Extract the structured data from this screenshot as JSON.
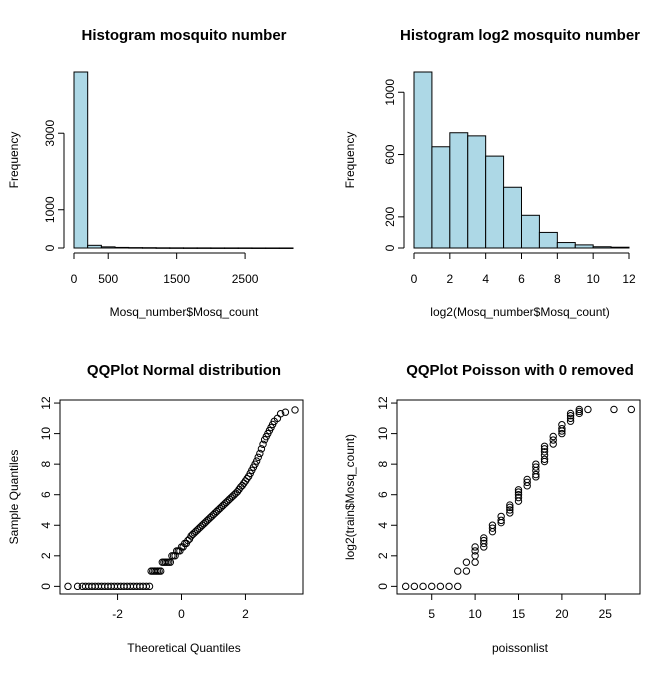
{
  "chart_data": [
    {
      "type": "bar",
      "title": "Histogram mosquito number",
      "xlabel": "Mosq_number$Mosq_count",
      "ylabel": "Frequency",
      "bin_edges": [
        0,
        200,
        400,
        600,
        800,
        1000,
        1200,
        1400,
        1600,
        1800,
        2000,
        2200,
        2400,
        2600,
        2800,
        3000,
        3200
      ],
      "values": [
        4600,
        70,
        30,
        15,
        10,
        8,
        5,
        4,
        3,
        3,
        2,
        2,
        2,
        1,
        1,
        1
      ],
      "xticks": [
        0,
        500,
        1500,
        2500
      ],
      "yticks": [
        0,
        1000,
        3000
      ],
      "xlim": [
        0,
        3200
      ],
      "ylim": [
        0,
        4600
      ],
      "bar_color": "#add8e6"
    },
    {
      "type": "bar",
      "title": "Histogram log2 mosquito number",
      "xlabel": "log2(Mosq_number$Mosq_count)",
      "ylabel": "Frequency",
      "bin_edges": [
        0,
        1,
        2,
        3,
        4,
        5,
        6,
        7,
        8,
        9,
        10,
        11,
        12
      ],
      "values": [
        1130,
        650,
        740,
        720,
        590,
        390,
        210,
        100,
        35,
        20,
        8,
        5
      ],
      "xticks": [
        0,
        2,
        4,
        6,
        8,
        10,
        12
      ],
      "yticks": [
        0,
        200,
        600,
        1000
      ],
      "xlim": [
        0,
        12
      ],
      "ylim": [
        0,
        1130
      ],
      "bar_color": "#add8e6"
    },
    {
      "type": "scatter",
      "title": "QQPlot Normal distribution",
      "xlabel": "Theoretical Quantiles",
      "ylabel": "Sample Quantiles",
      "xticks": [
        -2,
        0,
        2
      ],
      "yticks": [
        0,
        2,
        4,
        6,
        8,
        10,
        12
      ],
      "xlim": [
        -3.8,
        3.8
      ],
      "ylim": [
        -0.5,
        12.2
      ],
      "points": [
        [
          -3.55,
          0
        ],
        [
          -3.25,
          0
        ],
        [
          -3.1,
          0
        ],
        [
          -3.0,
          0
        ],
        [
          -2.9,
          0
        ],
        [
          -2.8,
          0
        ],
        [
          -2.7,
          0
        ],
        [
          -2.6,
          0
        ],
        [
          -2.5,
          0
        ],
        [
          -2.4,
          0
        ],
        [
          -2.3,
          0
        ],
        [
          -2.2,
          0
        ],
        [
          -2.1,
          0
        ],
        [
          -2.0,
          0
        ],
        [
          -1.9,
          0
        ],
        [
          -1.8,
          0
        ],
        [
          -1.7,
          0
        ],
        [
          -1.6,
          0
        ],
        [
          -1.5,
          0
        ],
        [
          -1.4,
          0
        ],
        [
          -1.3,
          0
        ],
        [
          -1.2,
          0
        ],
        [
          -1.1,
          0
        ],
        [
          -1.0,
          0
        ],
        [
          -0.95,
          1
        ],
        [
          -0.9,
          1
        ],
        [
          -0.85,
          1
        ],
        [
          -0.8,
          1
        ],
        [
          -0.75,
          1
        ],
        [
          -0.7,
          1
        ],
        [
          -0.65,
          1
        ],
        [
          -0.6,
          1.58
        ],
        [
          -0.55,
          1.58
        ],
        [
          -0.5,
          1.58
        ],
        [
          -0.45,
          1.58
        ],
        [
          -0.4,
          1.58
        ],
        [
          -0.35,
          1.58
        ],
        [
          -0.3,
          2
        ],
        [
          -0.25,
          2
        ],
        [
          -0.2,
          2
        ],
        [
          -0.15,
          2.32
        ],
        [
          -0.1,
          2.32
        ],
        [
          -0.05,
          2.32
        ],
        [
          0,
          2.58
        ],
        [
          0.05,
          2.58
        ],
        [
          0.1,
          2.81
        ],
        [
          0.15,
          2.81
        ],
        [
          0.2,
          3
        ],
        [
          0.25,
          3.1
        ],
        [
          0.3,
          3.3
        ],
        [
          0.35,
          3.4
        ],
        [
          0.4,
          3.5
        ],
        [
          0.45,
          3.6
        ],
        [
          0.5,
          3.7
        ],
        [
          0.55,
          3.8
        ],
        [
          0.6,
          3.9
        ],
        [
          0.65,
          4.0
        ],
        [
          0.7,
          4.1
        ],
        [
          0.75,
          4.2
        ],
        [
          0.8,
          4.3
        ],
        [
          0.85,
          4.4
        ],
        [
          0.9,
          4.5
        ],
        [
          0.95,
          4.6
        ],
        [
          1.0,
          4.7
        ],
        [
          1.05,
          4.8
        ],
        [
          1.1,
          4.9
        ],
        [
          1.15,
          5.0
        ],
        [
          1.2,
          5.1
        ],
        [
          1.25,
          5.2
        ],
        [
          1.3,
          5.3
        ],
        [
          1.35,
          5.4
        ],
        [
          1.4,
          5.5
        ],
        [
          1.45,
          5.6
        ],
        [
          1.5,
          5.7
        ],
        [
          1.55,
          5.8
        ],
        [
          1.6,
          5.9
        ],
        [
          1.65,
          6.0
        ],
        [
          1.7,
          6.1
        ],
        [
          1.75,
          6.2
        ],
        [
          1.8,
          6.35
        ],
        [
          1.85,
          6.5
        ],
        [
          1.9,
          6.6
        ],
        [
          1.95,
          6.75
        ],
        [
          2.0,
          6.9
        ],
        [
          2.05,
          7.05
        ],
        [
          2.1,
          7.2
        ],
        [
          2.15,
          7.4
        ],
        [
          2.2,
          7.6
        ],
        [
          2.25,
          7.8
        ],
        [
          2.3,
          8.0
        ],
        [
          2.35,
          8.2
        ],
        [
          2.4,
          8.45
        ],
        [
          2.45,
          8.7
        ],
        [
          2.5,
          9.0
        ],
        [
          2.55,
          9.3
        ],
        [
          2.6,
          9.6
        ],
        [
          2.65,
          9.8
        ],
        [
          2.7,
          10.0
        ],
        [
          2.75,
          10.2
        ],
        [
          2.8,
          10.4
        ],
        [
          2.85,
          10.6
        ],
        [
          2.9,
          10.8
        ],
        [
          3.0,
          11.0
        ],
        [
          3.1,
          11.3
        ],
        [
          3.25,
          11.4
        ],
        [
          3.55,
          11.55
        ]
      ]
    },
    {
      "type": "scatter",
      "title": "QQPlot Poisson with 0 removed",
      "xlabel": "poissonlist",
      "ylabel": "log2(train$Mosq_count)",
      "xticks": [
        5,
        10,
        15,
        20,
        25
      ],
      "yticks": [
        0,
        2,
        4,
        6,
        8,
        10,
        12
      ],
      "xlim": [
        1,
        29
      ],
      "ylim": [
        -0.5,
        12.2
      ],
      "points": [
        [
          2,
          0
        ],
        [
          3,
          0
        ],
        [
          4,
          0
        ],
        [
          5,
          0
        ],
        [
          6,
          0
        ],
        [
          7,
          0
        ],
        [
          8,
          0
        ],
        [
          8,
          1
        ],
        [
          9,
          1
        ],
        [
          9,
          1.58
        ],
        [
          10,
          1.58
        ],
        [
          10,
          2
        ],
        [
          10,
          2.32
        ],
        [
          10,
          2.58
        ],
        [
          11,
          2.58
        ],
        [
          11,
          2.81
        ],
        [
          11,
          3.0
        ],
        [
          11,
          3.17
        ],
        [
          12,
          3.58
        ],
        [
          12,
          3.81
        ],
        [
          12,
          4.0
        ],
        [
          13,
          4.17
        ],
        [
          13,
          4.32
        ],
        [
          13,
          4.58
        ],
        [
          14,
          4.81
        ],
        [
          14,
          5.0
        ],
        [
          14,
          5.17
        ],
        [
          14,
          5.32
        ],
        [
          15,
          5.58
        ],
        [
          15,
          5.81
        ],
        [
          15,
          6.0
        ],
        [
          15,
          6.17
        ],
        [
          15,
          6.32
        ],
        [
          16,
          6.58
        ],
        [
          16,
          6.81
        ],
        [
          16,
          7.0
        ],
        [
          17,
          7.17
        ],
        [
          17,
          7.32
        ],
        [
          17,
          7.58
        ],
        [
          17,
          7.81
        ],
        [
          17,
          8.0
        ],
        [
          18,
          8.17
        ],
        [
          18,
          8.32
        ],
        [
          18,
          8.58
        ],
        [
          18,
          8.81
        ],
        [
          18,
          9.0
        ],
        [
          18,
          9.17
        ],
        [
          19,
          9.32
        ],
        [
          19,
          9.58
        ],
        [
          19,
          9.81
        ],
        [
          20,
          10.0
        ],
        [
          20,
          10.17
        ],
        [
          20,
          10.32
        ],
        [
          20,
          10.58
        ],
        [
          21,
          10.81
        ],
        [
          21,
          11.0
        ],
        [
          21,
          11.17
        ],
        [
          21,
          11.32
        ],
        [
          22,
          11.32
        ],
        [
          22,
          11.45
        ],
        [
          22,
          11.58
        ],
        [
          23,
          11.58
        ],
        [
          26,
          11.58
        ],
        [
          28,
          11.58
        ]
      ]
    }
  ]
}
